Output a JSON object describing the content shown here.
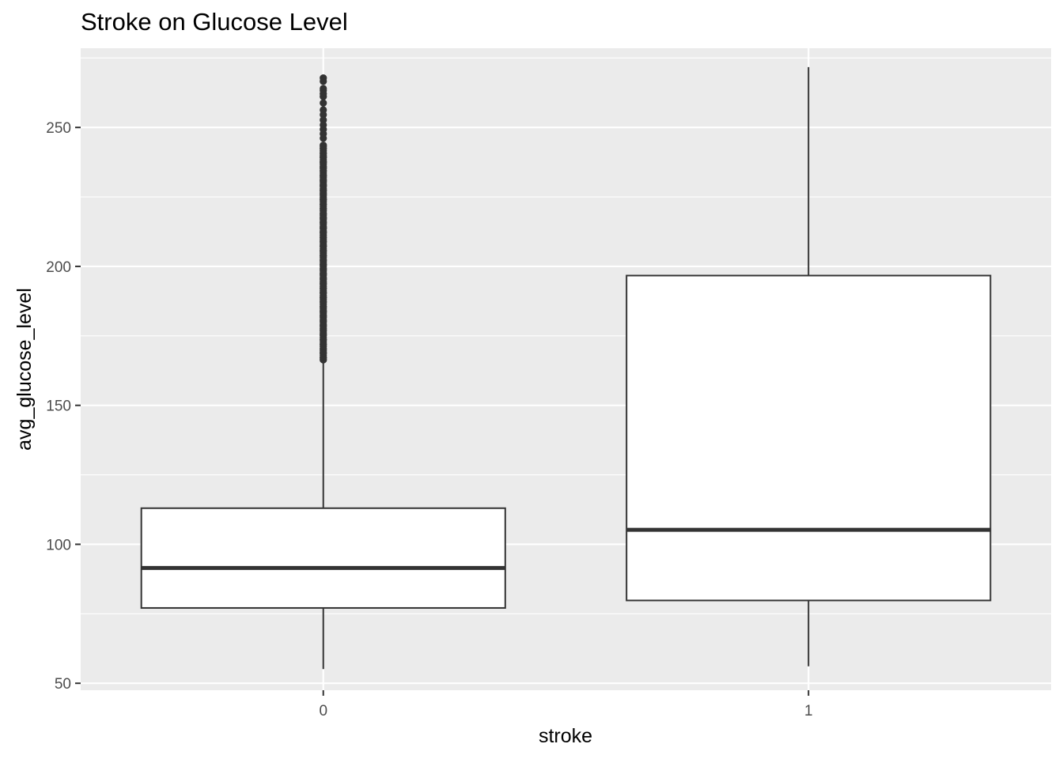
{
  "chart_data": {
    "type": "boxplot",
    "title": "Stroke on Glucose Level",
    "xlabel": "stroke",
    "ylabel": "avg_glucose_level",
    "categories": [
      "0",
      "1"
    ],
    "ylim": [
      47.5,
      278.5
    ],
    "yticks": [
      50,
      100,
      150,
      200,
      250
    ],
    "grid": true,
    "boxes": [
      {
        "category": "0",
        "whisker_low": 55.1,
        "q1": 77.1,
        "median": 91.5,
        "q3": 113,
        "whisker_high": 166.4,
        "outlier_range": [
          166.4,
          267.8
        ],
        "outliers_extra": [
          263.3,
          264,
          261.1,
          256.3,
          254.6,
          252.7,
          250.9,
          249.3,
          247.7,
          246.1,
          243.6,
          242.5,
          240.7,
          239.3,
          237.5,
          235.6,
          234.4,
          232.5,
          230.9,
          229.1,
          227.4,
          225.9,
          224.1,
          222.3,
          220.8,
          218.9,
          217.3,
          215.7,
          213.9,
          212.3,
          210.4,
          208.9,
          207.3,
          205.6,
          203.8,
          202.2,
          200.5,
          198.9,
          197.2,
          195.6,
          193.8,
          192.1,
          190.5,
          188.8,
          187.2,
          185.4,
          183.7,
          182.1,
          180.4,
          178.7,
          177.1,
          175.4,
          173.6,
          172,
          170.3,
          168.8,
          167.1,
          166.4,
          267.8,
          266.6,
          262.1,
          258.8
        ]
      },
      {
        "category": "1",
        "whisker_low": 56.1,
        "q1": 79.8,
        "median": 105.2,
        "q3": 196.7,
        "whisker_high": 271.7,
        "outliers_extra": []
      }
    ]
  }
}
